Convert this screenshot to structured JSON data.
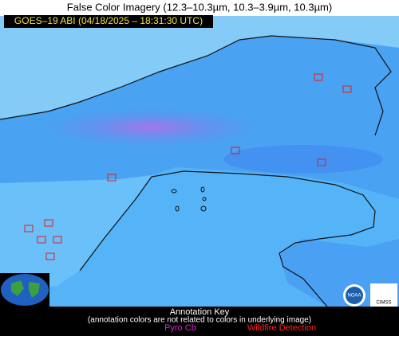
{
  "header": {
    "title": "False Color Imagery (12.3–10.3µm, 10.3–3.9µm, 10.3µm)",
    "subtitle": "GOES–19 ABI (04/18/2025 – 18:31:30 UTC)"
  },
  "legend": {
    "title": "Annotation Key",
    "note": "(annotation colors are not related to colors in underlying image)",
    "items": [
      "Pyro Cb",
      "Wildfire Detection"
    ]
  },
  "logos": {
    "noaa": "NOAA",
    "cimss": "CIMSS"
  }
}
